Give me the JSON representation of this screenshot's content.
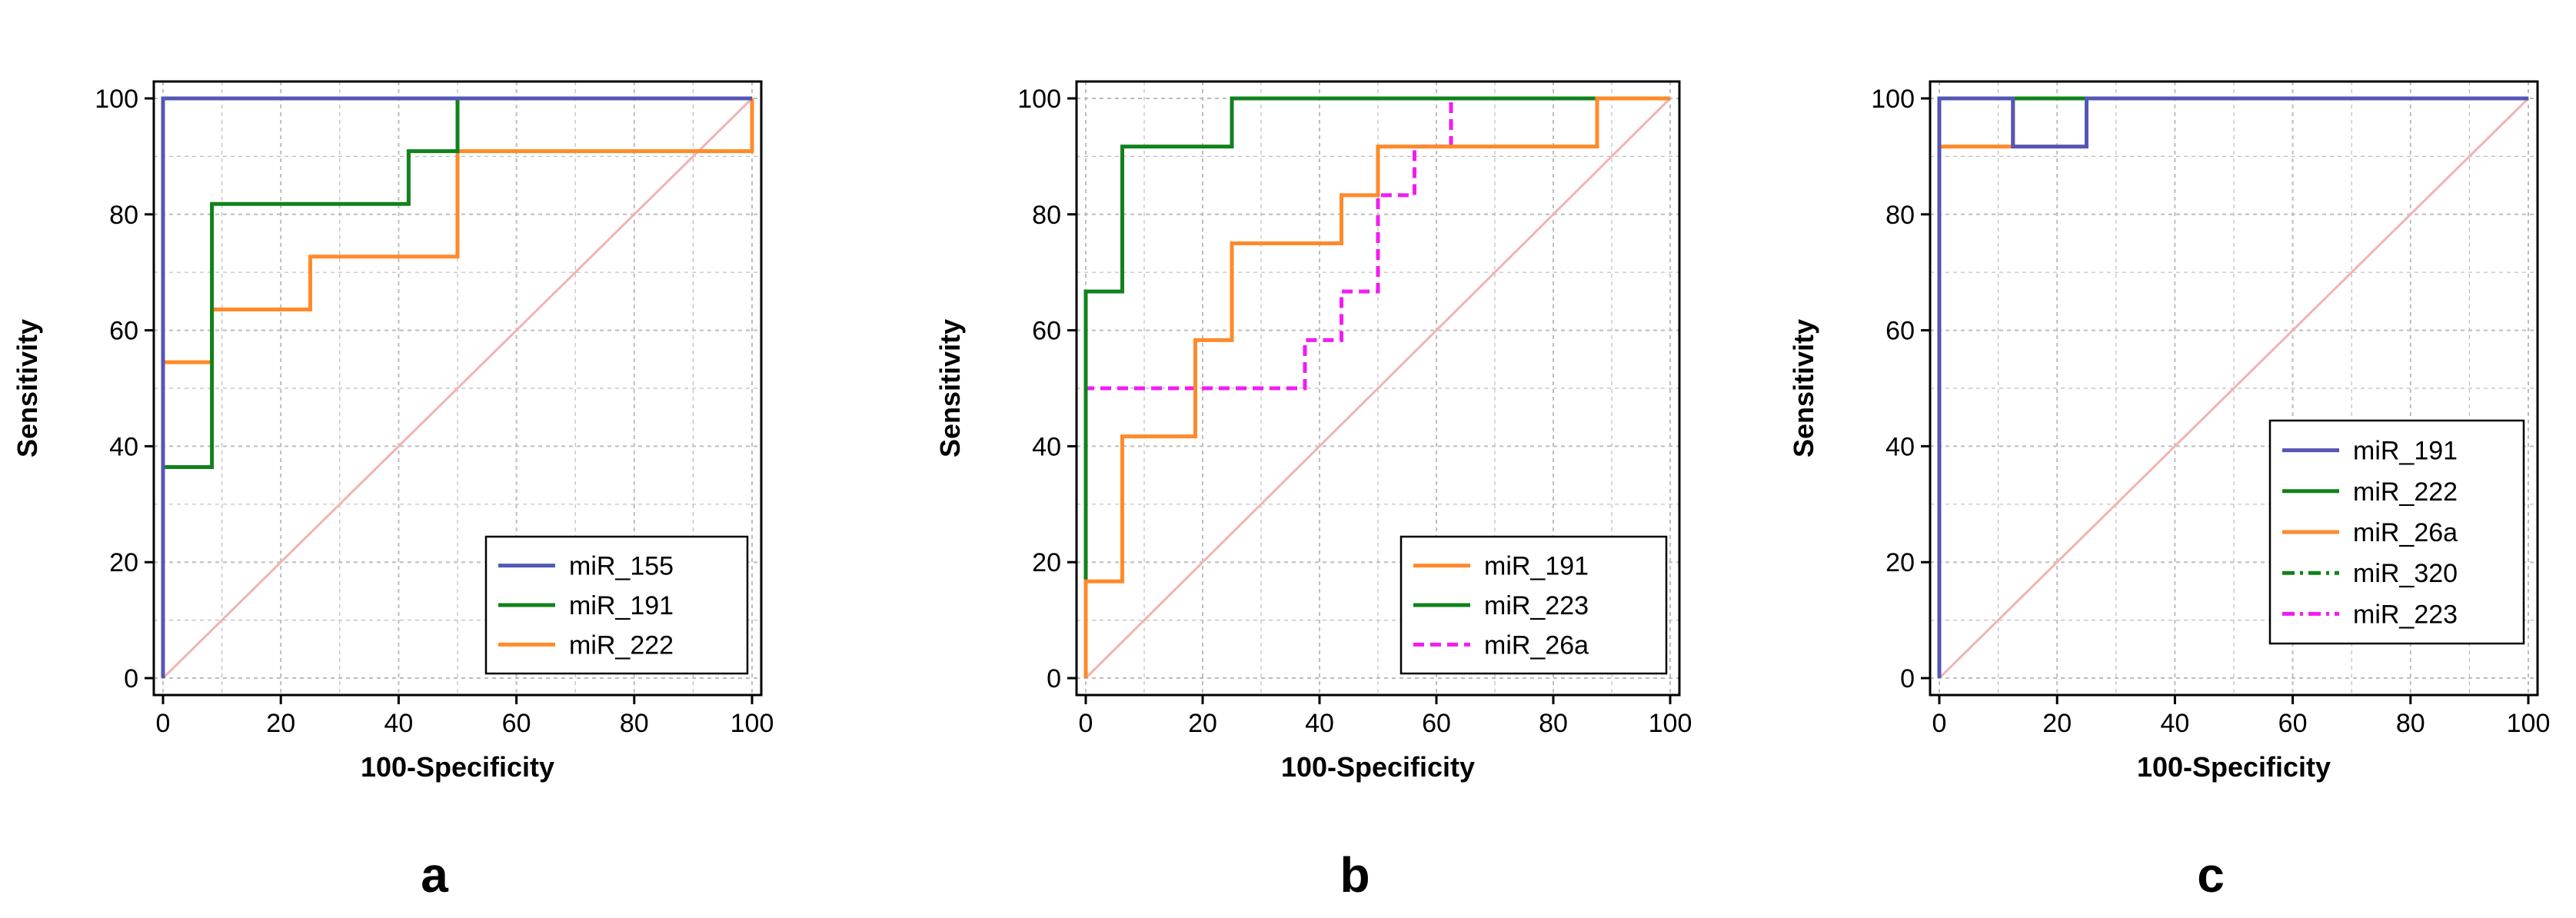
{
  "colors": {
    "blue": "#5457b3",
    "green": "#11821b",
    "orange": "#ff8a2a",
    "magenta": "#f21cf2",
    "dark_green": "#11821b",
    "diagonal": "#f2b3b3",
    "grid": "#bdbdbd"
  },
  "chart_data": [
    {
      "type": "line",
      "panel_label": "a",
      "xlabel": "100-Specificity",
      "ylabel": "Sensitivity",
      "xlim": [
        0,
        100
      ],
      "ylim": [
        0,
        100
      ],
      "xticks": [
        "0",
        "20",
        "40",
        "60",
        "80",
        "100"
      ],
      "yticks": [
        "0",
        "20",
        "40",
        "60",
        "80",
        "100"
      ],
      "grid": true,
      "legend_position": "bottom-right",
      "series": [
        {
          "name": "miR_155",
          "color": "blue",
          "style": "solid",
          "points": [
            [
              0,
              0
            ],
            [
              0,
              100
            ],
            [
              50,
              100
            ],
            [
              100,
              100
            ]
          ]
        },
        {
          "name": "miR_191",
          "color": "green",
          "style": "solid",
          "points": [
            [
              0,
              0
            ],
            [
              0,
              36.4
            ],
            [
              8.3,
              36.4
            ],
            [
              8.3,
              81.8
            ],
            [
              41.7,
              81.8
            ],
            [
              41.7,
              90.9
            ],
            [
              50,
              90.9
            ],
            [
              50,
              100
            ],
            [
              100,
              100
            ]
          ]
        },
        {
          "name": "miR_222",
          "color": "orange",
          "style": "solid",
          "points": [
            [
              0,
              0
            ],
            [
              0,
              54.5
            ],
            [
              8.3,
              54.5
            ],
            [
              8.3,
              63.6
            ],
            [
              25,
              63.6
            ],
            [
              25,
              72.7
            ],
            [
              50,
              72.7
            ],
            [
              50,
              90.9
            ],
            [
              100,
              90.9
            ],
            [
              100,
              100
            ]
          ]
        }
      ]
    },
    {
      "type": "line",
      "panel_label": "b",
      "xlabel": "100-Specificity",
      "ylabel": "Sensitivity",
      "xlim": [
        0,
        100
      ],
      "ylim": [
        0,
        100
      ],
      "xticks": [
        "0",
        "20",
        "40",
        "60",
        "80",
        "100"
      ],
      "yticks": [
        "0",
        "20",
        "40",
        "60",
        "80",
        "100"
      ],
      "grid": true,
      "legend_position": "bottom-right",
      "series": [
        {
          "name": "miR_191",
          "color": "orange",
          "style": "solid",
          "points": [
            [
              0,
              0
            ],
            [
              0,
              16.7
            ],
            [
              6.25,
              16.7
            ],
            [
              6.25,
              41.7
            ],
            [
              18.75,
              41.7
            ],
            [
              18.75,
              58.3
            ],
            [
              25,
              58.3
            ],
            [
              25,
              75
            ],
            [
              43.75,
              75
            ],
            [
              43.75,
              83.3
            ],
            [
              50,
              83.3
            ],
            [
              50,
              91.7
            ],
            [
              87.5,
              91.7
            ],
            [
              87.5,
              100
            ],
            [
              100,
              100
            ]
          ]
        },
        {
          "name": "miR_223",
          "color": "green",
          "style": "solid",
          "points": [
            [
              0,
              0
            ],
            [
              0,
              66.7
            ],
            [
              6.25,
              66.7
            ],
            [
              6.25,
              91.7
            ],
            [
              25,
              91.7
            ],
            [
              25,
              100
            ],
            [
              100,
              100
            ]
          ]
        },
        {
          "name": "miR_26a",
          "color": "magenta",
          "style": "dashed",
          "points": [
            [
              0,
              0
            ],
            [
              0,
              50
            ],
            [
              37.5,
              50
            ],
            [
              37.5,
              58.3
            ],
            [
              43.75,
              58.3
            ],
            [
              43.75,
              66.7
            ],
            [
              50,
              66.7
            ],
            [
              50,
              83.3
            ],
            [
              56.25,
              83.3
            ],
            [
              56.25,
              91.7
            ],
            [
              62.5,
              91.7
            ],
            [
              62.5,
              100
            ],
            [
              100,
              100
            ]
          ]
        }
      ]
    },
    {
      "type": "line",
      "panel_label": "c",
      "xlabel": "100-Specificity",
      "ylabel": "Sensitivity",
      "xlim": [
        0,
        100
      ],
      "ylim": [
        0,
        100
      ],
      "xticks": [
        "0",
        "20",
        "40",
        "60",
        "80",
        "100"
      ],
      "yticks": [
        "0",
        "20",
        "40",
        "60",
        "80",
        "100"
      ],
      "grid": true,
      "legend_position": "center-right",
      "series": [
        {
          "name": "miR_191",
          "color": "blue",
          "style": "solid",
          "points": [
            [
              0,
              0
            ],
            [
              0,
              100
            ],
            [
              12.5,
              100
            ],
            [
              12.5,
              91.7
            ],
            [
              25,
              91.7
            ],
            [
              25,
              100
            ],
            [
              100,
              100
            ]
          ]
        },
        {
          "name": "miR_222",
          "color": "green",
          "style": "solid",
          "points": [
            [
              0,
              0
            ],
            [
              0,
              100
            ],
            [
              100,
              100
            ]
          ]
        },
        {
          "name": "miR_26a",
          "color": "orange",
          "style": "solid",
          "points": [
            [
              0,
              0
            ],
            [
              0,
              91.7
            ],
            [
              12.5,
              91.7
            ],
            [
              12.5,
              100
            ],
            [
              100,
              100
            ]
          ]
        },
        {
          "name": "miR_320",
          "color": "dark_green",
          "style": "dashdot",
          "points": [
            [
              0,
              0
            ],
            [
              0,
              100
            ],
            [
              100,
              100
            ]
          ]
        },
        {
          "name": "miR_223",
          "color": "magenta",
          "style": "dashdot",
          "points": [
            [
              0,
              0
            ],
            [
              0,
              100
            ],
            [
              100,
              100
            ]
          ]
        }
      ]
    }
  ]
}
